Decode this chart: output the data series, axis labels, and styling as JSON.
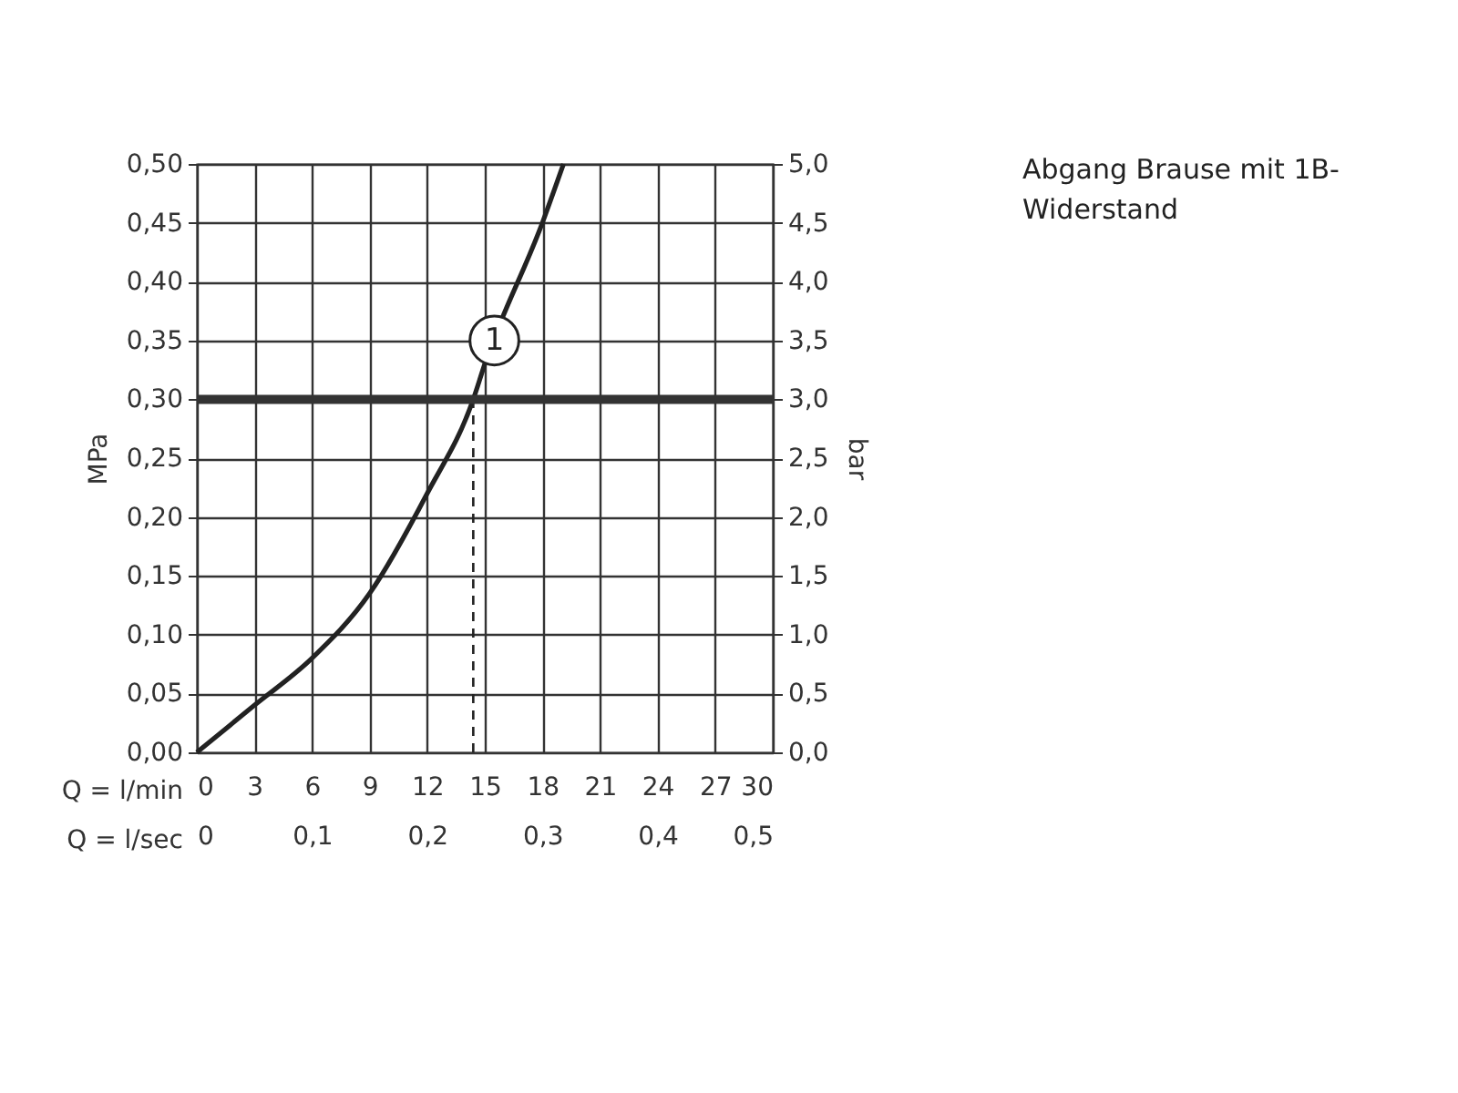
{
  "chart_data": {
    "type": "line",
    "xlabel": "Q = l/min",
    "ylabel": "MPa",
    "y2label": "bar",
    "x2label": "Q = l/sec",
    "series": [
      {
        "color": "#222222",
        "x": [
          0,
          3,
          6,
          9,
          12,
          14.4,
          15,
          18,
          19.1
        ],
        "values": [
          0,
          0.04,
          0.08,
          0.135,
          0.22,
          0.3,
          0.33,
          0.45,
          0.5
        ]
      },
      {
        "type": "line",
        "color": "#222222",
        "line_style": "dashed",
        "x": [
          14.4,
          14.4
        ],
        "values": [
          0,
          0.3
        ]
      }
    ],
    "xlim": [
      0,
      30
    ],
    "xticks": [
      0,
      3,
      6,
      9,
      12,
      15,
      18,
      21,
      24,
      27,
      30
    ],
    "x2lim": [
      0,
      0.5
    ],
    "x2ticks": [
      0,
      {
        "value": 0.1,
        "label": "0,1"
      },
      {
        "value": 0.2,
        "label": "0,2"
      },
      {
        "value": 0.3,
        "label": "0,3"
      },
      {
        "value": 0.4,
        "label": "0,4"
      },
      {
        "value": 0.5,
        "label": "0,5"
      }
    ],
    "ylim": [
      0,
      0.5
    ],
    "yticks": [
      {
        "value": 0,
        "label": "0,00"
      },
      {
        "value": 0.05,
        "label": "0,05"
      },
      {
        "value": 0.1,
        "label": "0,10"
      },
      {
        "value": 0.15,
        "label": "0,15"
      },
      {
        "value": 0.2,
        "label": "0,20"
      },
      {
        "value": 0.25,
        "label": "0,25"
      },
      {
        "value": 0.3,
        "label": "0,30"
      },
      {
        "value": 0.35,
        "label": "0,35"
      },
      {
        "value": 0.4,
        "label": "0,40"
      },
      {
        "value": 0.45,
        "label": "0,45"
      },
      {
        "value": 0.5,
        "label": "0,50"
      }
    ],
    "y2lim": [
      0,
      5
    ],
    "y2ticks": [
      {
        "value": 0,
        "label": "0,0"
      },
      {
        "value": 0.5,
        "label": "0,5"
      },
      {
        "value": 1,
        "label": "1,0"
      },
      {
        "value": 1.5,
        "label": "1,5"
      },
      {
        "value": 2,
        "label": "2,0"
      },
      {
        "value": 2.5,
        "label": "2,5"
      },
      {
        "value": 3,
        "label": "3,0"
      },
      {
        "value": 3.5,
        "label": "3,5"
      },
      {
        "value": 4,
        "label": "4,0"
      },
      {
        "value": 4.5,
        "label": "4,5"
      },
      {
        "value": 5,
        "label": "5,0"
      }
    ],
    "ref_lines": [
      {
        "axis": "y",
        "value": 0.3,
        "color": "#333333"
      }
    ],
    "grid": true,
    "annotations": [
      {
        "text": "1",
        "x": 15.5,
        "y": 0.35
      },
      "Abgang Brause mit 1B-Widerstand"
    ]
  }
}
